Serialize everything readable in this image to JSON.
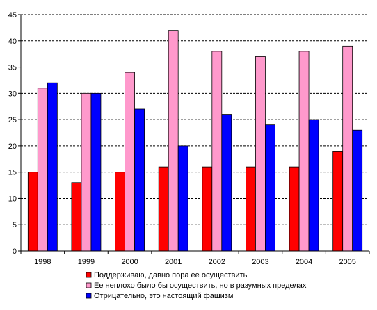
{
  "chart_data": {
    "type": "bar",
    "title": "",
    "xlabel": "",
    "ylabel": "",
    "categories": [
      "1998",
      "1999",
      "2000",
      "2001",
      "2002",
      "2003",
      "2004",
      "2005"
    ],
    "ylim": [
      0,
      45
    ],
    "yticks": [
      0,
      5,
      10,
      15,
      20,
      25,
      30,
      35,
      40,
      45
    ],
    "grid": "horizontal-dashed",
    "legend_position": "bottom",
    "series": [
      {
        "name": "Поддерживаю, давно пора ее осуществить",
        "color": "#ff0000",
        "values": [
          15,
          13,
          15,
          16,
          16,
          16,
          16,
          19
        ]
      },
      {
        "name": "Ее неплохо было бы осуществить, но в разумных пределах",
        "color": "#ff99cc",
        "values": [
          31,
          30,
          34,
          42,
          38,
          37,
          38,
          39
        ]
      },
      {
        "name": "Отрицательно, это настоящий фашизм",
        "color": "#0000ff",
        "values": [
          32,
          30,
          27,
          20,
          26,
          24,
          25,
          23
        ]
      }
    ]
  }
}
